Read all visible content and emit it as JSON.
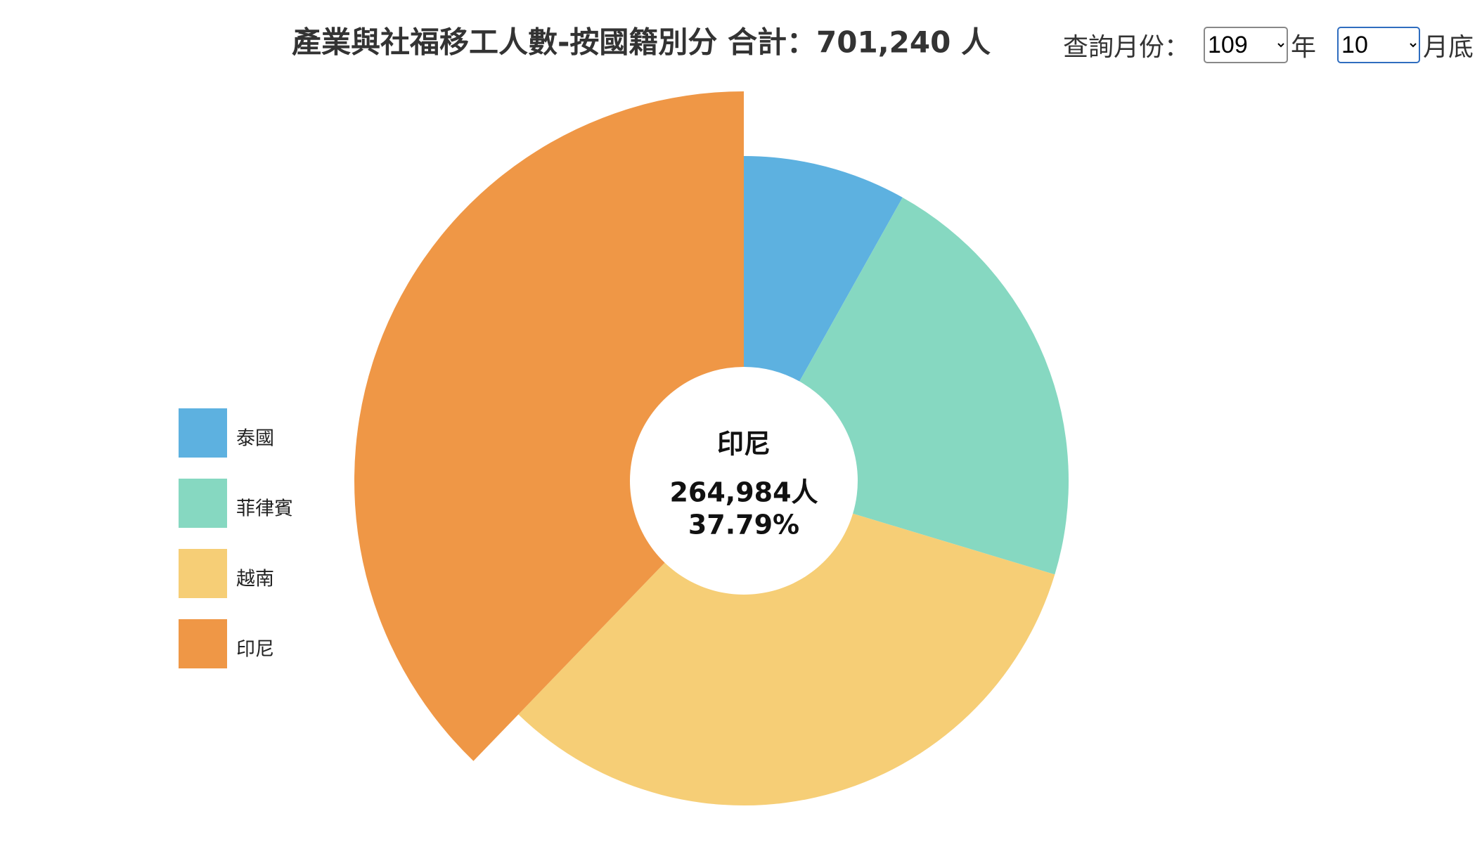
{
  "chart_data": {
    "type": "donut",
    "title": "產業與社福移工人數-按國籍別分 合計：701,240 人",
    "categories": [
      "泰國",
      "菲律賓",
      "越南",
      "印尼"
    ],
    "values": [
      57000,
      151000,
      228256,
      264984
    ],
    "colors": [
      "#5db1e0",
      "#86d8c1",
      "#f6ce76",
      "#ef9746"
    ],
    "value_labels": [
      null,
      null,
      null,
      "264,984人"
    ],
    "percent_labels": [
      null,
      null,
      null,
      "37.79%"
    ],
    "selected": 3,
    "legend": "left"
  },
  "controls": {
    "label": "查詢月份：",
    "year": "109",
    "year_unit": "年",
    "month": "10",
    "month_unit": "月底"
  }
}
